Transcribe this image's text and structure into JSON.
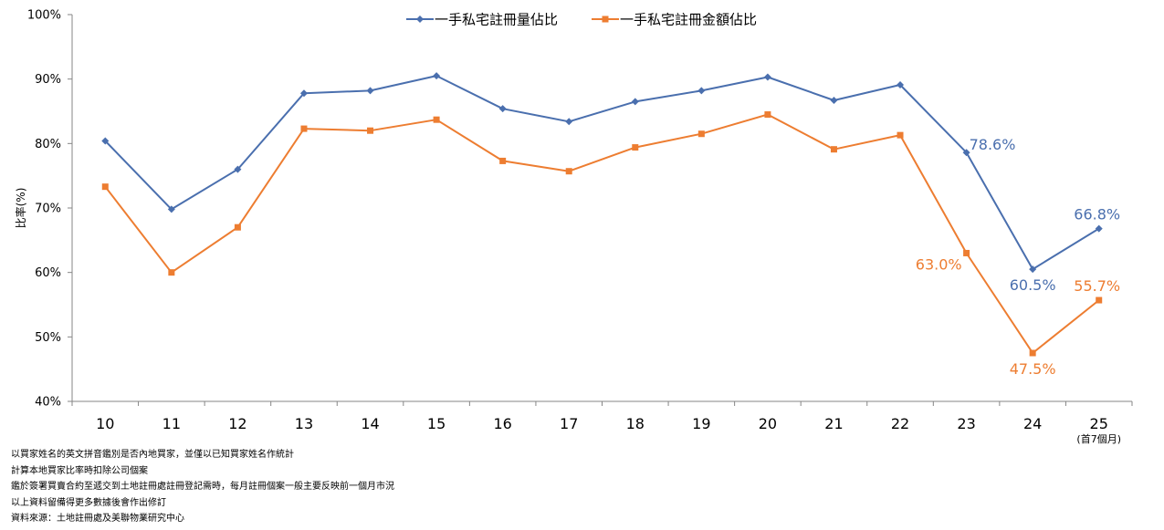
{
  "chart_data": {
    "type": "line",
    "categories": [
      "10",
      "11",
      "12",
      "13",
      "14",
      "15",
      "16",
      "17",
      "18",
      "19",
      "20",
      "21",
      "22",
      "23",
      "24",
      "25"
    ],
    "category_sublabels": {
      "25": "(首7個月)"
    },
    "ylabel": "比率(%)",
    "ylim": [
      40,
      100
    ],
    "yticks": [
      "40%",
      "50%",
      "60%",
      "70%",
      "80%",
      "90%",
      "100%"
    ],
    "grid": false,
    "legend_position": "top-center",
    "series": [
      {
        "name": "一手私宅註冊量佔比",
        "color": "#4a6fae",
        "marker": "diamond",
        "values": [
          80.4,
          69.8,
          76.0,
          87.8,
          88.2,
          90.5,
          85.4,
          83.4,
          86.5,
          88.2,
          90.3,
          86.7,
          89.1,
          78.6,
          60.5,
          66.8
        ]
      },
      {
        "name": "一手私宅註冊金額佔比",
        "color": "#ed7d31",
        "marker": "square",
        "values": [
          73.3,
          60.0,
          67.0,
          82.3,
          82.0,
          83.7,
          77.3,
          75.7,
          79.4,
          81.5,
          84.5,
          79.1,
          81.3,
          63.0,
          47.5,
          55.7
        ]
      }
    ],
    "data_labels": [
      {
        "series": 0,
        "index": 13,
        "text": "78.6%",
        "placement": "right"
      },
      {
        "series": 0,
        "index": 14,
        "text": "60.5%",
        "placement": "below"
      },
      {
        "series": 0,
        "index": 15,
        "text": "66.8%",
        "placement": "above"
      },
      {
        "series": 1,
        "index": 13,
        "text": "63.0%",
        "placement": "left"
      },
      {
        "series": 1,
        "index": 14,
        "text": "47.5%",
        "placement": "below"
      },
      {
        "series": 1,
        "index": 15,
        "text": "55.7%",
        "placement": "above"
      }
    ]
  },
  "notes": [
    "以買家姓名的英文拼音鑑別是否內地買家，並僅以已知買家姓名作統計",
    "計算本地買家比率時扣除公司個案",
    "鑑於簽署買賣合約至遞交到土地註冊處註冊登記需時，每月註冊個案一般主要反映前一個月市況",
    "以上資料留備得更多數據後會作出修訂",
    "資料來源：土地註冊處及美聯物業研究中心"
  ]
}
